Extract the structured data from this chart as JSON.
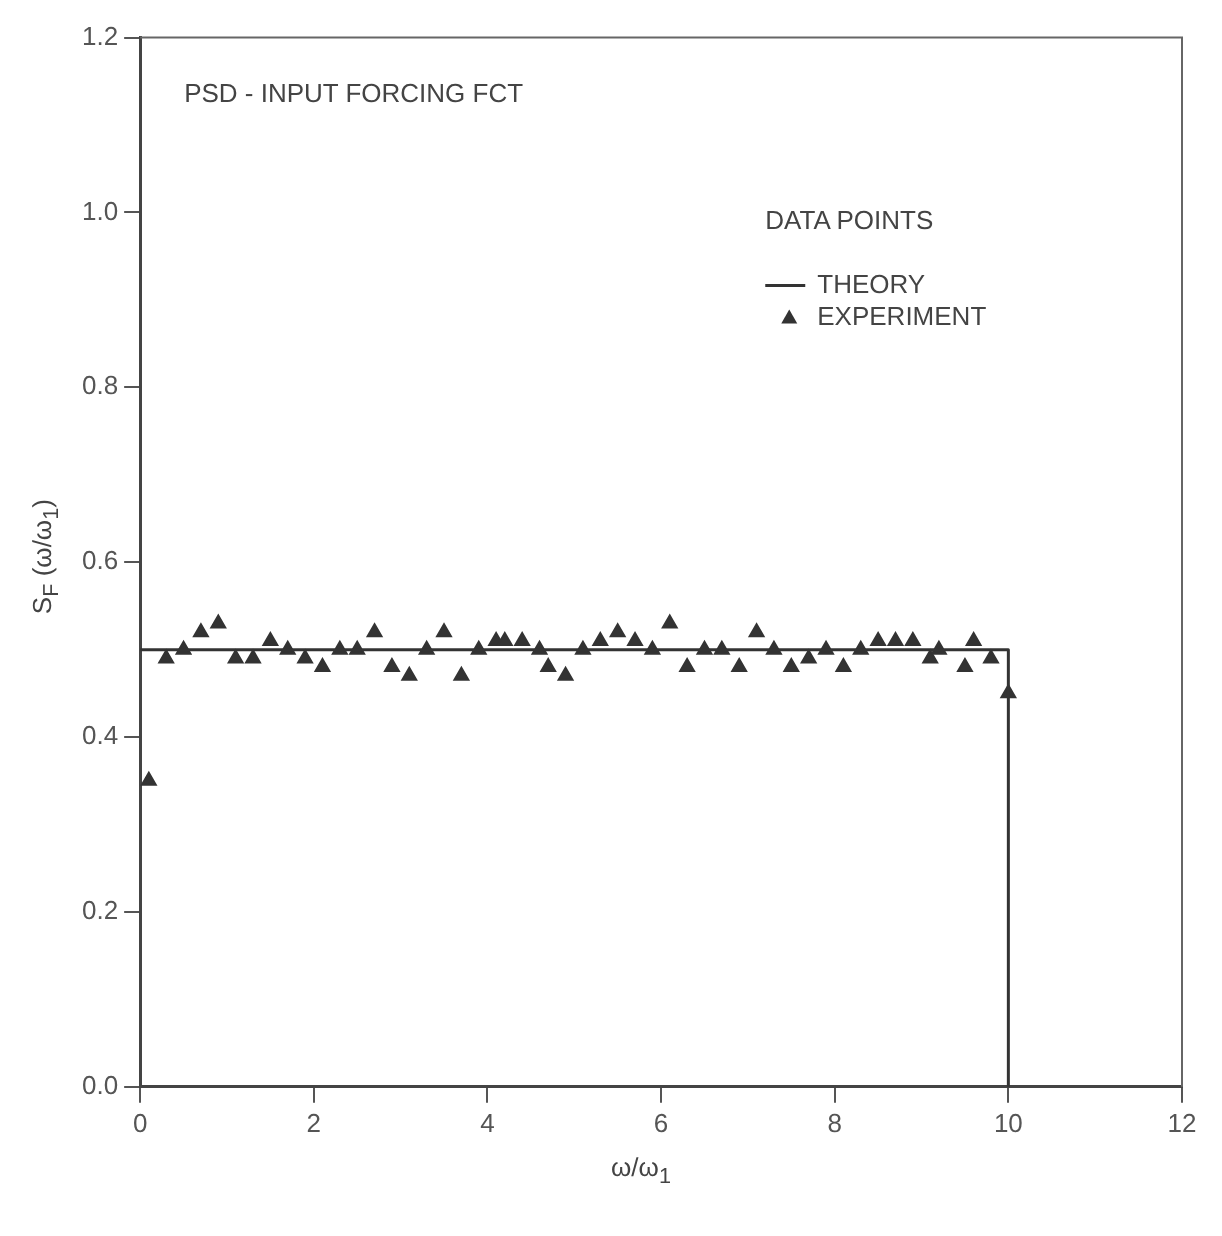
{
  "chart_data": {
    "type": "scatter",
    "title": "PSD - INPUT FORCING FCT",
    "xlabel": "ω/ω$_{1}$",
    "ylabel": "S$_{F}$ (ω/ω$_{1}$)",
    "legend_title": "DATA POINTS",
    "legend": "top right",
    "grid": false,
    "xlim": [
      0,
      12
    ],
    "xticks": [
      0,
      2,
      4,
      6,
      8,
      10,
      12
    ],
    "ylim": [
      0,
      1.2
    ],
    "yticks": [
      {
        "value": 0,
        "label": "0.0"
      },
      {
        "value": 0.2,
        "label": "0.2"
      },
      {
        "value": 0.4,
        "label": "0.4"
      },
      {
        "value": 0.6,
        "label": "0.6"
      },
      {
        "value": 0.8,
        "label": "0.8"
      },
      {
        "value": 1,
        "label": "1.0"
      },
      {
        "value": 1.2,
        "label": "1.2"
      }
    ],
    "series": [
      {
        "name": "THEORY",
        "type": "line",
        "color": "#333333",
        "marker": "none",
        "line_style": "solid",
        "x": [
          0,
          10,
          10
        ],
        "values": [
          0.5,
          0.5,
          0
        ]
      },
      {
        "name": "EXPERIMENT",
        "type": "scatter",
        "color": "#333333",
        "marker": "triangle",
        "x": [
          0.1,
          0.3,
          0.5,
          0.7,
          0.9,
          1.1,
          1.3,
          1.5,
          1.7,
          1.9,
          2.1,
          2.3,
          2.5,
          2.7,
          2.9,
          3.1,
          3.3,
          3.5,
          3.7,
          3.9,
          4.1,
          4.2,
          4.4,
          4.6,
          4.7,
          4.9,
          5.1,
          5.3,
          5.5,
          5.7,
          5.9,
          6.1,
          6.3,
          6.5,
          6.7,
          6.9,
          7.1,
          7.3,
          7.5,
          7.7,
          7.9,
          8.1,
          8.3,
          8.5,
          8.7,
          8.9,
          9.1,
          9.2,
          9.5,
          9.6,
          9.8,
          10
        ],
        "values": [
          0.35,
          0.49,
          0.5,
          0.52,
          0.53,
          0.49,
          0.49,
          0.51,
          0.5,
          0.49,
          0.48,
          0.5,
          0.5,
          0.52,
          0.48,
          0.47,
          0.5,
          0.52,
          0.47,
          0.5,
          0.51,
          0.51,
          0.51,
          0.5,
          0.48,
          0.47,
          0.5,
          0.51,
          0.52,
          0.51,
          0.5,
          0.53,
          0.48,
          0.5,
          0.5,
          0.48,
          0.52,
          0.5,
          0.48,
          0.49,
          0.5,
          0.48,
          0.5,
          0.51,
          0.51,
          0.51,
          0.49,
          0.5,
          0.48,
          0.51,
          0.49,
          0.45
        ]
      }
    ]
  }
}
